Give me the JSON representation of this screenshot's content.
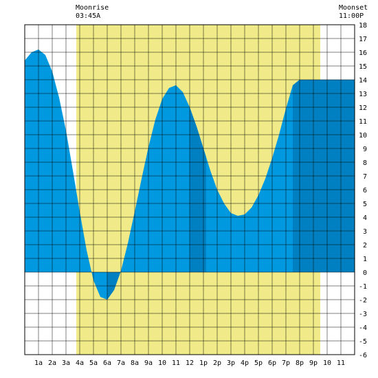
{
  "chart_data": {
    "type": "area",
    "x_unit": "hour",
    "x_range": [
      0,
      24
    ],
    "y_range": [
      -6,
      18
    ],
    "grid": true,
    "moon": {
      "rise_label": "Moonrise",
      "rise_time_label": "03:45A",
      "rise_hour": 3.75,
      "set_label": "Moonset",
      "set_time_label": "11:00P",
      "set_hour": 23.0,
      "visible_band_end_hour": 21.5,
      "band_color": "#f0ea88"
    },
    "series": [
      {
        "x": [
          0,
          0.5,
          1,
          1.5,
          2,
          2.5,
          3,
          3.5,
          4,
          4.5,
          5,
          5.5,
          6,
          6.5,
          7,
          7.5,
          8,
          8.5,
          9,
          9.5,
          10,
          10.5,
          11,
          11.5,
          12,
          12.5,
          13,
          13.5,
          14,
          14.5,
          15,
          15.5,
          16,
          16.5,
          17,
          17.5,
          18,
          18.5,
          19,
          19.5,
          20,
          20.5,
          21,
          21.5,
          22,
          22.5,
          23,
          23.5,
          24
        ],
        "values": [
          15.4,
          16.0,
          16.2,
          15.8,
          14.6,
          12.7,
          10.3,
          7.4,
          4.4,
          1.6,
          -0.6,
          -1.8,
          -2.0,
          -1.3,
          0.1,
          2.1,
          4.4,
          6.8,
          9.1,
          11.1,
          12.6,
          13.4,
          13.6,
          13.1,
          12.0,
          10.6,
          9.0,
          7.4,
          6.0,
          5.0,
          4.3,
          4.1,
          4.2,
          4.7,
          5.6,
          6.8,
          8.3,
          10.0,
          11.9,
          13.6,
          14.0,
          14.0,
          14.0,
          14.0,
          14.0,
          14.0,
          14.0,
          14.0,
          14.0
        ],
        "light_color": "#0099e0",
        "dark_color": "#0080c0"
      }
    ],
    "dark_segments_hours": [
      [
        -1.0,
        0.0
      ],
      [
        6.0,
        7.0
      ],
      [
        12.0,
        13.2
      ],
      [
        19.5,
        24.0
      ]
    ],
    "x_tick_labels": [
      "1a",
      "2a",
      "3a",
      "4a",
      "5a",
      "6a",
      "7a",
      "8a",
      "9a",
      "10",
      "11",
      "12",
      "1p",
      "2p",
      "3p",
      "4p",
      "5p",
      "6p",
      "7p",
      "8p",
      "9p",
      "10",
      "11"
    ],
    "y_tick_labels": [
      "-6",
      "-5",
      "-4",
      "-3",
      "-2",
      "-1",
      "0",
      "1",
      "2",
      "3",
      "4",
      "5",
      "6",
      "7",
      "8",
      "9",
      "10",
      "11",
      "12",
      "13",
      "14",
      "15",
      "16",
      "17",
      "18"
    ]
  }
}
